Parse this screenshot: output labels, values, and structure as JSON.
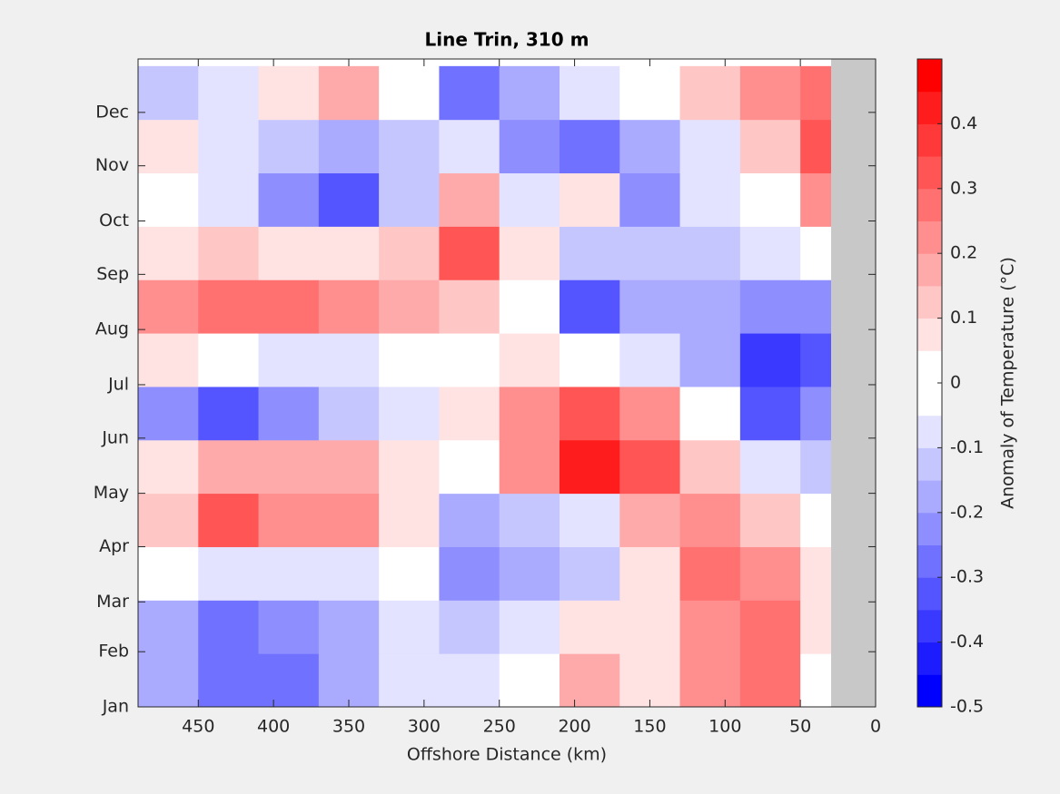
{
  "chart_data": {
    "type": "heatmap",
    "title": "Line Trin, 310 m",
    "xlabel": "Offshore Distance (km)",
    "colorbar_label": "Anomaly of Temperature (°C)",
    "xlim": [
      490,
      0
    ],
    "xticks": [
      450,
      400,
      350,
      300,
      250,
      200,
      150,
      100,
      50,
      0
    ],
    "ylim": [
      1,
      365
    ],
    "yticks": [
      {
        "value": 1,
        "label": "Jan"
      },
      {
        "value": 32,
        "label": "Feb"
      },
      {
        "value": 60,
        "label": "Mar"
      },
      {
        "value": 91,
        "label": "Apr"
      },
      {
        "value": 121,
        "label": "May"
      },
      {
        "value": 152,
        "label": "Jun"
      },
      {
        "value": 182,
        "label": "Jul"
      },
      {
        "value": 213,
        "label": "Aug"
      },
      {
        "value": 244,
        "label": "Sep"
      },
      {
        "value": 274,
        "label": "Oct"
      },
      {
        "value": 305,
        "label": "Nov"
      },
      {
        "value": 335,
        "label": "Dec"
      }
    ],
    "clim": [
      -0.5,
      0.5
    ],
    "cticks": [
      -0.5,
      -0.4,
      -0.3,
      -0.2,
      -0.1,
      0,
      0.1,
      0.2,
      0.3,
      0.4
    ],
    "x": [
      470,
      430,
      390,
      350,
      310,
      270,
      230,
      190,
      150,
      110,
      70,
      30
    ],
    "y": [
      16,
      46,
      76,
      106,
      136,
      166,
      196,
      226,
      256,
      286,
      316,
      346
    ],
    "z": [
      [
        -0.15,
        -0.25,
        -0.25,
        -0.15,
        -0.05,
        -0.05,
        0,
        0.15,
        0.05,
        0.2,
        0.25,
        0
      ],
      [
        -0.15,
        -0.25,
        -0.2,
        -0.15,
        -0.05,
        -0.1,
        -0.05,
        0.05,
        0.05,
        0.2,
        0.25,
        0.05
      ],
      [
        0,
        -0.05,
        -0.05,
        -0.05,
        0,
        -0.2,
        -0.15,
        -0.1,
        0.05,
        0.25,
        0.2,
        0.05
      ],
      [
        0.1,
        0.3,
        0.2,
        0.2,
        0.05,
        -0.15,
        -0.1,
        -0.05,
        0.15,
        0.2,
        0.1,
        0
      ],
      [
        0.05,
        0.15,
        0.15,
        0.15,
        0.05,
        0,
        0.2,
        0.4,
        0.3,
        0.1,
        -0.05,
        -0.1
      ],
      [
        -0.2,
        -0.3,
        -0.2,
        -0.1,
        -0.05,
        0.05,
        0.2,
        0.3,
        0.2,
        0,
        -0.3,
        -0.2
      ],
      [
        0.05,
        0,
        -0.05,
        -0.05,
        0,
        0,
        0.05,
        0,
        -0.05,
        -0.15,
        -0.35,
        -0.3
      ],
      [
        0.2,
        0.25,
        0.25,
        0.2,
        0.15,
        0.1,
        0,
        -0.3,
        -0.15,
        -0.15,
        -0.2,
        -0.2
      ],
      [
        0.05,
        0.1,
        0.05,
        0.05,
        0.1,
        0.3,
        0.05,
        -0.1,
        -0.1,
        -0.1,
        -0.05,
        0
      ],
      [
        0,
        -0.05,
        -0.2,
        -0.3,
        -0.1,
        0.15,
        -0.05,
        0.05,
        -0.2,
        -0.05,
        0,
        0.2
      ],
      [
        0.05,
        -0.05,
        -0.1,
        -0.15,
        -0.1,
        -0.05,
        -0.2,
        -0.25,
        -0.15,
        -0.05,
        0.1,
        0.3
      ],
      [
        -0.1,
        -0.05,
        0.05,
        0.15,
        0,
        -0.25,
        -0.15,
        -0.05,
        0,
        0.1,
        0.2,
        0.25
      ]
    ]
  }
}
